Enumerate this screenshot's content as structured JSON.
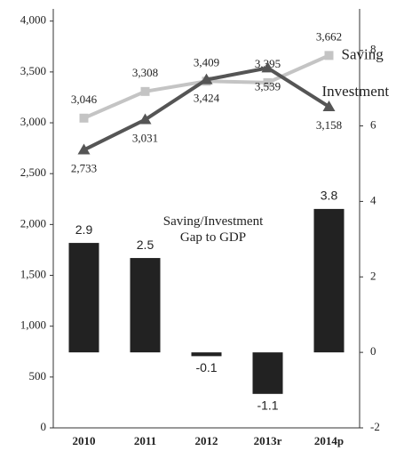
{
  "chart_data": {
    "type": "combo",
    "categories": [
      "2010",
      "2011",
      "2012",
      "2013r",
      "2014p"
    ],
    "ylim": [
      0,
      4120
    ],
    "yticks": [
      0,
      500,
      {
        "value": 1000,
        "label": "1,000"
      },
      {
        "value": 1500,
        "label": "1,500"
      },
      {
        "value": 2000,
        "label": "2,000"
      },
      {
        "value": 2500,
        "label": "2,500"
      },
      {
        "value": 3000,
        "label": "3,000"
      },
      {
        "value": 3500,
        "label": "3,500"
      },
      {
        "value": 4000,
        "label": "4,000"
      }
    ],
    "y2lim": [
      -2,
      9.1
    ],
    "y2ticks": [
      -2,
      0,
      2,
      4,
      6,
      8
    ],
    "series": [
      {
        "name": "Saving",
        "type": "line",
        "marker": "square",
        "color": "#c4c4c4",
        "values": [
          3046,
          3308,
          3409,
          3395,
          3662
        ],
        "value_labels": [
          "3,046",
          "3,308",
          "3,409",
          "3,395",
          "3,662"
        ]
      },
      {
        "name": "Investment",
        "type": "line",
        "marker": "triangle",
        "color": "#555555",
        "values": [
          2733,
          3031,
          3424,
          3539,
          3158
        ],
        "value_labels": [
          "2,733",
          "3,031",
          "3,424",
          "3,539",
          "3,158"
        ]
      },
      {
        "name": "Saving/Investment Gap to GDP",
        "type": "bar",
        "axis": "y2",
        "color": "#222222",
        "values": [
          2.9,
          2.5,
          -0.1,
          -1.1,
          3.8
        ]
      }
    ]
  }
}
